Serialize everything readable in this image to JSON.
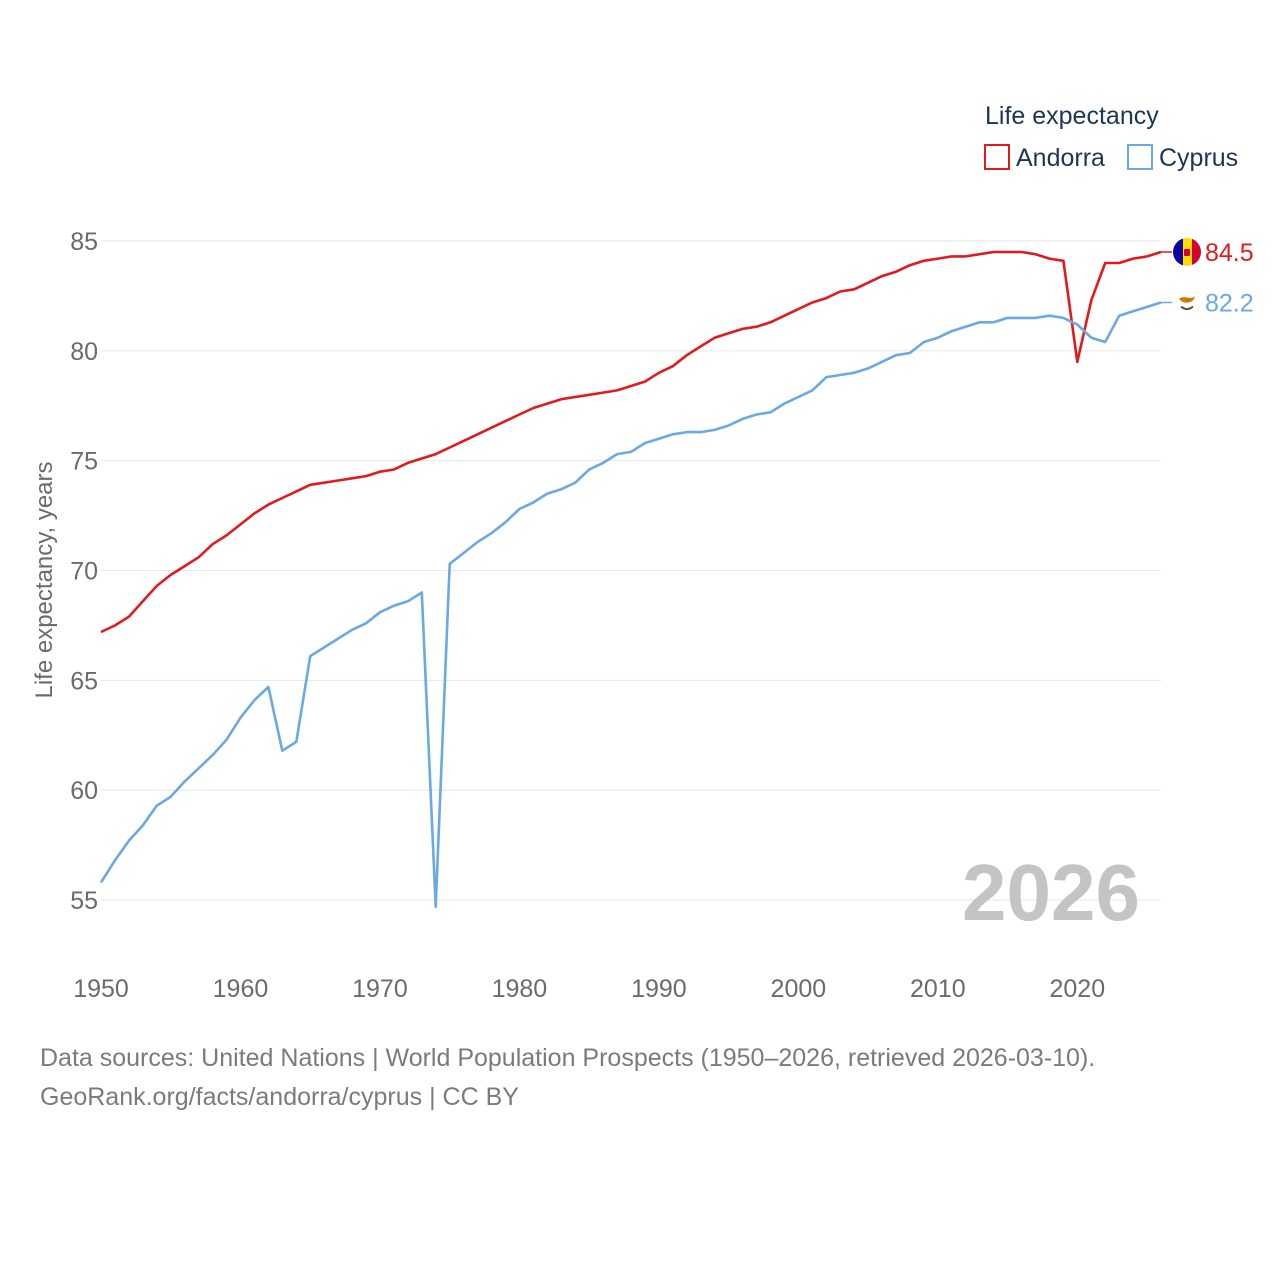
{
  "chart_data": {
    "type": "line",
    "ylabel": "Life expectancy, years",
    "xlim": [
      1950,
      2026
    ],
    "ylim": [
      52.5,
      85.5
    ],
    "x_ticks": [
      1950,
      1960,
      1970,
      1980,
      1990,
      2000,
      2010,
      2020
    ],
    "y_ticks": [
      55,
      60,
      65,
      70,
      75,
      80,
      85
    ],
    "grid": true,
    "legend_title": "Life expectancy",
    "legend_position": "top-right",
    "year_label": "2026",
    "series": [
      {
        "name": "Andorra",
        "color": "#e31a1c",
        "end_label": "84.5",
        "flag": "andorra-flag",
        "x": [
          1950,
          1951,
          1952,
          1953,
          1954,
          1955,
          1956,
          1957,
          1958,
          1959,
          1960,
          1961,
          1962,
          1963,
          1964,
          1965,
          1966,
          1967,
          1968,
          1969,
          1970,
          1971,
          1972,
          1973,
          1974,
          1975,
          1976,
          1977,
          1978,
          1979,
          1980,
          1981,
          1982,
          1983,
          1984,
          1985,
          1986,
          1987,
          1988,
          1989,
          1990,
          1991,
          1992,
          1993,
          1994,
          1995,
          1996,
          1997,
          1998,
          1999,
          2000,
          2001,
          2002,
          2003,
          2004,
          2005,
          2006,
          2007,
          2008,
          2009,
          2010,
          2011,
          2012,
          2013,
          2014,
          2015,
          2016,
          2017,
          2018,
          2019,
          2020,
          2021,
          2022,
          2023,
          2024,
          2025,
          2026
        ],
        "values": [
          67.2,
          67.5,
          67.9,
          68.6,
          69.3,
          69.8,
          70.2,
          70.6,
          71.2,
          71.6,
          72.1,
          72.6,
          73.0,
          73.3,
          73.6,
          73.9,
          74.0,
          74.1,
          74.2,
          74.3,
          74.5,
          74.6,
          74.9,
          75.1,
          75.3,
          75.6,
          75.9,
          76.2,
          76.5,
          76.8,
          77.1,
          77.4,
          77.6,
          77.8,
          77.9,
          78.0,
          78.1,
          78.2,
          78.4,
          78.6,
          79.0,
          79.3,
          79.8,
          80.2,
          80.6,
          80.8,
          81.0,
          81.1,
          81.3,
          81.6,
          81.9,
          82.2,
          82.4,
          82.7,
          82.8,
          83.1,
          83.4,
          83.6,
          83.9,
          84.1,
          84.2,
          84.3,
          84.3,
          84.4,
          84.5,
          84.5,
          84.5,
          84.4,
          84.2,
          84.1,
          79.5,
          82.3,
          84.0,
          84.0,
          84.2,
          84.3,
          84.5
        ]
      },
      {
        "name": "Cyprus",
        "color": "#6aa9e4",
        "end_label": "82.2",
        "flag": "cyprus-flag",
        "x": [
          1950,
          1951,
          1952,
          1953,
          1954,
          1955,
          1956,
          1957,
          1958,
          1959,
          1960,
          1961,
          1962,
          1963,
          1964,
          1965,
          1966,
          1967,
          1968,
          1969,
          1970,
          1971,
          1972,
          1973,
          1974,
          1975,
          1976,
          1977,
          1978,
          1979,
          1980,
          1981,
          1982,
          1983,
          1984,
          1985,
          1986,
          1987,
          1988,
          1989,
          1990,
          1991,
          1992,
          1993,
          1994,
          1995,
          1996,
          1997,
          1998,
          1999,
          2000,
          2001,
          2002,
          2003,
          2004,
          2005,
          2006,
          2007,
          2008,
          2009,
          2010,
          2011,
          2012,
          2013,
          2014,
          2015,
          2016,
          2017,
          2018,
          2019,
          2020,
          2021,
          2022,
          2023,
          2024,
          2025,
          2026
        ],
        "values": [
          55.8,
          56.8,
          57.7,
          58.4,
          59.3,
          59.7,
          60.4,
          61.0,
          61.6,
          62.3,
          63.3,
          64.1,
          64.7,
          61.8,
          62.2,
          66.1,
          66.5,
          66.9,
          67.3,
          67.6,
          68.1,
          68.4,
          68.6,
          69.0,
          54.7,
          70.3,
          70.8,
          71.3,
          71.7,
          72.2,
          72.8,
          73.1,
          73.5,
          73.7,
          74.0,
          74.6,
          74.9,
          75.3,
          75.4,
          75.8,
          76.0,
          76.2,
          76.3,
          76.3,
          76.4,
          76.6,
          76.9,
          77.1,
          77.2,
          77.6,
          77.9,
          78.2,
          78.8,
          78.9,
          79.0,
          79.2,
          79.5,
          79.8,
          79.9,
          80.4,
          80.6,
          80.9,
          81.1,
          81.3,
          81.3,
          81.5,
          81.5,
          81.5,
          81.6,
          81.5,
          81.2,
          80.6,
          80.4,
          81.6,
          81.8,
          82.0,
          82.2
        ]
      }
    ]
  },
  "footer": {
    "source_line": "Data sources: United Nations | World Population Prospects (1950–2026, retrieved 2026-03-10).",
    "credit_line": "GeoRank.org/facts/andorra/cyprus | CC BY"
  }
}
